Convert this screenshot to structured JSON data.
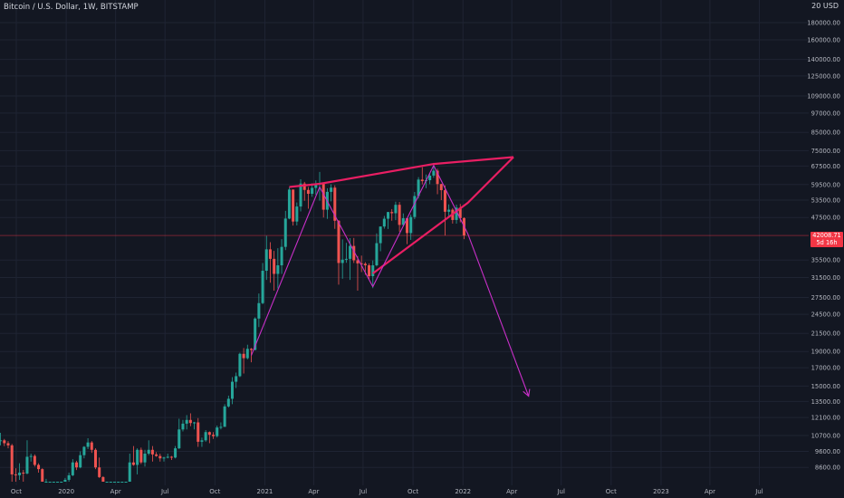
{
  "header": {
    "symbol": "Bitcoin / U.S. Dollar, 1W, BITSTAMP",
    "currency": "USD"
  },
  "price_tag": {
    "price": "42008.71",
    "countdown": "5d 16h",
    "color": "#f23645"
  },
  "colors": {
    "background": "#131722",
    "up": "#26a69a",
    "down": "#ef5350",
    "pattern": "#e91e63",
    "projection": "#c82fc8",
    "grid": "#1f2433",
    "text": "#b2b5be"
  },
  "chart_data": {
    "type": "candlestick",
    "title": "Bitcoin / U.S. Dollar, 1W, BITSTAMP",
    "y_scale": "log",
    "ylim": [
      7800,
      205000
    ],
    "y_ticks": [
      8600,
      9600,
      10700,
      12100,
      13500,
      15000,
      17000,
      19000,
      21500,
      24500,
      27500,
      31500,
      35500,
      47500,
      53500,
      59500,
      67500,
      75000,
      85000,
      97000,
      109000,
      125000,
      140000,
      160000,
      180000
    ],
    "y_top_label_partial": "20",
    "x_tick_labels": [
      "Oct",
      "2020",
      "Apr",
      "Jul",
      "Oct",
      "2021",
      "Apr",
      "Jul",
      "Oct",
      "2022",
      "Apr",
      "Jul",
      "Oct",
      "2023",
      "Apr",
      "Jul"
    ],
    "x_start": "2019-09-01",
    "x_end": "2023-09-30",
    "last_price": 42008.71,
    "candles": [
      {
        "t": "2019-09-02",
        "o": 10300,
        "h": 10900,
        "l": 10000,
        "c": 10350
      },
      {
        "t": "2019-09-09",
        "o": 10350,
        "h": 10450,
        "l": 9950,
        "c": 10150
      },
      {
        "t": "2019-09-16",
        "o": 10150,
        "h": 10300,
        "l": 9800,
        "c": 10000
      },
      {
        "t": "2019-09-23",
        "o": 10000,
        "h": 10100,
        "l": 7800,
        "c": 8200
      },
      {
        "t": "2019-09-30",
        "o": 8200,
        "h": 8550,
        "l": 7800,
        "c": 8150
      },
      {
        "t": "2019-10-07",
        "o": 8150,
        "h": 8850,
        "l": 7900,
        "c": 8300
      },
      {
        "t": "2019-10-14",
        "o": 8300,
        "h": 8450,
        "l": 7800,
        "c": 8250
      },
      {
        "t": "2019-10-21",
        "o": 8250,
        "h": 10350,
        "l": 8200,
        "c": 9250
      },
      {
        "t": "2019-10-28",
        "o": 9250,
        "h": 9450,
        "l": 8950,
        "c": 9300
      },
      {
        "t": "2019-11-04",
        "o": 9300,
        "h": 9400,
        "l": 8650,
        "c": 8750
      },
      {
        "t": "2019-11-11",
        "o": 8750,
        "h": 8850,
        "l": 8300,
        "c": 8500
      },
      {
        "t": "2019-11-18",
        "o": 8500,
        "h": 8550,
        "l": 7800,
        "c": 7800
      },
      {
        "t": "2019-11-25",
        "o": 7800,
        "h": 7950,
        "l": 7800,
        "c": 7800
      },
      {
        "t": "2019-12-02",
        "o": 7800,
        "h": 7800,
        "l": 7800,
        "c": 7800
      },
      {
        "t": "2019-12-09",
        "o": 7800,
        "h": 7800,
        "l": 7800,
        "c": 7800
      },
      {
        "t": "2019-12-16",
        "o": 7800,
        "h": 7800,
        "l": 7800,
        "c": 7800
      },
      {
        "t": "2019-12-23",
        "o": 7800,
        "h": 7800,
        "l": 7800,
        "c": 7800
      },
      {
        "t": "2019-12-30",
        "o": 7800,
        "h": 8000,
        "l": 7800,
        "c": 7900
      },
      {
        "t": "2020-01-06",
        "o": 7900,
        "h": 8300,
        "l": 7800,
        "c": 8150
      },
      {
        "t": "2020-01-13",
        "o": 8150,
        "h": 9100,
        "l": 8100,
        "c": 8900
      },
      {
        "t": "2020-01-20",
        "o": 8900,
        "h": 9000,
        "l": 8450,
        "c": 8600
      },
      {
        "t": "2020-01-27",
        "o": 8600,
        "h": 9600,
        "l": 8550,
        "c": 9350
      },
      {
        "t": "2020-02-03",
        "o": 9350,
        "h": 9950,
        "l": 9150,
        "c": 9900
      },
      {
        "t": "2020-02-10",
        "o": 9900,
        "h": 10500,
        "l": 9750,
        "c": 10200
      },
      {
        "t": "2020-02-17",
        "o": 10200,
        "h": 10300,
        "l": 9500,
        "c": 9700
      },
      {
        "t": "2020-02-24",
        "o": 9700,
        "h": 9800,
        "l": 8500,
        "c": 8600
      },
      {
        "t": "2020-03-02",
        "o": 8600,
        "h": 9200,
        "l": 8000,
        "c": 8050
      },
      {
        "t": "2020-03-09",
        "o": 8050,
        "h": 8100,
        "l": 7800,
        "c": 7800
      },
      {
        "t": "2020-03-16",
        "o": 7800,
        "h": 7800,
        "l": 7800,
        "c": 7800
      },
      {
        "t": "2020-03-23",
        "o": 7800,
        "h": 7800,
        "l": 7800,
        "c": 7800
      },
      {
        "t": "2020-03-30",
        "o": 7800,
        "h": 7800,
        "l": 7800,
        "c": 7800
      },
      {
        "t": "2020-04-06",
        "o": 7800,
        "h": 7800,
        "l": 7800,
        "c": 7800
      },
      {
        "t": "2020-04-13",
        "o": 7800,
        "h": 7800,
        "l": 7800,
        "c": 7800
      },
      {
        "t": "2020-04-20",
        "o": 7800,
        "h": 7800,
        "l": 7800,
        "c": 7800
      },
      {
        "t": "2020-04-27",
        "o": 7800,
        "h": 9450,
        "l": 7800,
        "c": 8900
      },
      {
        "t": "2020-05-04",
        "o": 8900,
        "h": 9950,
        "l": 8700,
        "c": 8750
      },
      {
        "t": "2020-05-11",
        "o": 8750,
        "h": 9800,
        "l": 8200,
        "c": 9700
      },
      {
        "t": "2020-05-18",
        "o": 9700,
        "h": 9850,
        "l": 8800,
        "c": 8900
      },
      {
        "t": "2020-05-25",
        "o": 8900,
        "h": 9700,
        "l": 8650,
        "c": 9450
      },
      {
        "t": "2020-06-01",
        "o": 9450,
        "h": 10350,
        "l": 9350,
        "c": 9700
      },
      {
        "t": "2020-06-08",
        "o": 9700,
        "h": 9950,
        "l": 8950,
        "c": 9400
      },
      {
        "t": "2020-06-15",
        "o": 9400,
        "h": 9550,
        "l": 9250,
        "c": 9300
      },
      {
        "t": "2020-06-22",
        "o": 9300,
        "h": 9450,
        "l": 8950,
        "c": 9150
      },
      {
        "t": "2020-06-29",
        "o": 9150,
        "h": 9250,
        "l": 8950,
        "c": 9200
      },
      {
        "t": "2020-07-06",
        "o": 9200,
        "h": 9450,
        "l": 9150,
        "c": 9250
      },
      {
        "t": "2020-07-13",
        "o": 9250,
        "h": 9300,
        "l": 9050,
        "c": 9200
      },
      {
        "t": "2020-07-20",
        "o": 9200,
        "h": 9950,
        "l": 9150,
        "c": 9800
      },
      {
        "t": "2020-07-27",
        "o": 9800,
        "h": 12000,
        "l": 9750,
        "c": 11150
      },
      {
        "t": "2020-08-03",
        "o": 11150,
        "h": 11900,
        "l": 11000,
        "c": 11600
      },
      {
        "t": "2020-08-10",
        "o": 11600,
        "h": 12300,
        "l": 11150,
        "c": 11900
      },
      {
        "t": "2020-08-17",
        "o": 11900,
        "h": 12450,
        "l": 11400,
        "c": 11650
      },
      {
        "t": "2020-08-24",
        "o": 11650,
        "h": 11750,
        "l": 11150,
        "c": 11700
      },
      {
        "t": "2020-08-31",
        "o": 11700,
        "h": 12050,
        "l": 9900,
        "c": 10250
      },
      {
        "t": "2020-09-07",
        "o": 10250,
        "h": 10550,
        "l": 9900,
        "c": 10350
      },
      {
        "t": "2020-09-14",
        "o": 10350,
        "h": 11100,
        "l": 10250,
        "c": 10950
      },
      {
        "t": "2020-09-21",
        "o": 10950,
        "h": 11000,
        "l": 10150,
        "c": 10750
      },
      {
        "t": "2020-09-28",
        "o": 10750,
        "h": 10950,
        "l": 10450,
        "c": 10650
      },
      {
        "t": "2020-10-05",
        "o": 10650,
        "h": 11450,
        "l": 10550,
        "c": 11300
      },
      {
        "t": "2020-10-12",
        "o": 11300,
        "h": 11700,
        "l": 11150,
        "c": 11350
      },
      {
        "t": "2020-10-19",
        "o": 11350,
        "h": 13250,
        "l": 11350,
        "c": 13050
      },
      {
        "t": "2020-10-26",
        "o": 13050,
        "h": 14050,
        "l": 12950,
        "c": 13750
      },
      {
        "t": "2020-11-02",
        "o": 13750,
        "h": 15950,
        "l": 13250,
        "c": 15450
      },
      {
        "t": "2020-11-09",
        "o": 15450,
        "h": 16450,
        "l": 14800,
        "c": 16050
      },
      {
        "t": "2020-11-16",
        "o": 16050,
        "h": 18850,
        "l": 15950,
        "c": 18700
      },
      {
        "t": "2020-11-23",
        "o": 18700,
        "h": 19450,
        "l": 16350,
        "c": 18150
      },
      {
        "t": "2020-11-30",
        "o": 18150,
        "h": 19900,
        "l": 18000,
        "c": 19350
      },
      {
        "t": "2020-12-07",
        "o": 19350,
        "h": 19450,
        "l": 17650,
        "c": 19200
      },
      {
        "t": "2020-12-14",
        "o": 19200,
        "h": 24000,
        "l": 19150,
        "c": 23800
      },
      {
        "t": "2020-12-21",
        "o": 23800,
        "h": 28250,
        "l": 22450,
        "c": 26450
      },
      {
        "t": "2020-12-28",
        "o": 26450,
        "h": 34800,
        "l": 26250,
        "c": 33000
      },
      {
        "t": "2021-01-04",
        "o": 33000,
        "h": 41900,
        "l": 31000,
        "c": 38200
      },
      {
        "t": "2021-01-11",
        "o": 38200,
        "h": 40100,
        "l": 30400,
        "c": 35800
      },
      {
        "t": "2021-01-18",
        "o": 35800,
        "h": 37800,
        "l": 28800,
        "c": 32300
      },
      {
        "t": "2021-01-25",
        "o": 32300,
        "h": 38500,
        "l": 29250,
        "c": 34250
      },
      {
        "t": "2021-02-01",
        "o": 34250,
        "h": 40950,
        "l": 32300,
        "c": 38850
      },
      {
        "t": "2021-02-08",
        "o": 38850,
        "h": 49700,
        "l": 38000,
        "c": 47150
      },
      {
        "t": "2021-02-15",
        "o": 47150,
        "h": 58350,
        "l": 46950,
        "c": 57500
      },
      {
        "t": "2021-02-22",
        "o": 57500,
        "h": 57500,
        "l": 44950,
        "c": 46200
      },
      {
        "t": "2021-03-01",
        "o": 46200,
        "h": 52650,
        "l": 45000,
        "c": 51200
      },
      {
        "t": "2021-03-08",
        "o": 51200,
        "h": 61700,
        "l": 49500,
        "c": 59900
      },
      {
        "t": "2021-03-15",
        "o": 59900,
        "h": 60600,
        "l": 53250,
        "c": 57350
      },
      {
        "t": "2021-03-22",
        "o": 57350,
        "h": 58500,
        "l": 50450,
        "c": 55850
      },
      {
        "t": "2021-03-29",
        "o": 55850,
        "h": 60000,
        "l": 54700,
        "c": 58150
      },
      {
        "t": "2021-04-05",
        "o": 58150,
        "h": 61200,
        "l": 55450,
        "c": 59850
      },
      {
        "t": "2021-04-12",
        "o": 59850,
        "h": 64850,
        "l": 53300,
        "c": 60050
      },
      {
        "t": "2021-04-19",
        "o": 60050,
        "h": 60050,
        "l": 47500,
        "c": 50100
      },
      {
        "t": "2021-04-26",
        "o": 50100,
        "h": 58000,
        "l": 47050,
        "c": 56600
      },
      {
        "t": "2021-05-03",
        "o": 56600,
        "h": 59600,
        "l": 53050,
        "c": 58250
      },
      {
        "t": "2021-05-10",
        "o": 58250,
        "h": 59200,
        "l": 43950,
        "c": 46450
      },
      {
        "t": "2021-05-17",
        "o": 46450,
        "h": 46650,
        "l": 30000,
        "c": 34800
      },
      {
        "t": "2021-05-24",
        "o": 34800,
        "h": 40900,
        "l": 31250,
        "c": 35600
      },
      {
        "t": "2021-05-31",
        "o": 35600,
        "h": 39950,
        "l": 34850,
        "c": 35800
      },
      {
        "t": "2021-06-07",
        "o": 35800,
        "h": 41250,
        "l": 31000,
        "c": 39100
      },
      {
        "t": "2021-06-14",
        "o": 39100,
        "h": 41300,
        "l": 34800,
        "c": 35450
      },
      {
        "t": "2021-06-21",
        "o": 35450,
        "h": 36500,
        "l": 28800,
        "c": 34700
      },
      {
        "t": "2021-06-28",
        "o": 34700,
        "h": 36600,
        "l": 32700,
        "c": 34600
      },
      {
        "t": "2021-07-05",
        "o": 34600,
        "h": 35000,
        "l": 32100,
        "c": 34250
      },
      {
        "t": "2021-07-12",
        "o": 34250,
        "h": 34700,
        "l": 31050,
        "c": 31800
      },
      {
        "t": "2021-07-19",
        "o": 31800,
        "h": 35400,
        "l": 29300,
        "c": 34250
      },
      {
        "t": "2021-07-26",
        "o": 34250,
        "h": 42600,
        "l": 34000,
        "c": 39850
      },
      {
        "t": "2021-08-02",
        "o": 39850,
        "h": 44700,
        "l": 37700,
        "c": 44650
      },
      {
        "t": "2021-08-09",
        "o": 44650,
        "h": 48000,
        "l": 44000,
        "c": 47100
      },
      {
        "t": "2021-08-16",
        "o": 47100,
        "h": 49350,
        "l": 43900,
        "c": 49300
      },
      {
        "t": "2021-08-23",
        "o": 49300,
        "h": 50300,
        "l": 46450,
        "c": 48900
      },
      {
        "t": "2021-08-30",
        "o": 48900,
        "h": 52900,
        "l": 46650,
        "c": 51800
      },
      {
        "t": "2021-09-06",
        "o": 51800,
        "h": 52800,
        "l": 43100,
        "c": 45150
      },
      {
        "t": "2021-09-13",
        "o": 45150,
        "h": 48850,
        "l": 44750,
        "c": 47250
      },
      {
        "t": "2021-09-20",
        "o": 47250,
        "h": 47350,
        "l": 39600,
        "c": 42700
      },
      {
        "t": "2021-09-27",
        "o": 42700,
        "h": 48450,
        "l": 40750,
        "c": 47650
      },
      {
        "t": "2021-10-04",
        "o": 47650,
        "h": 56550,
        "l": 46950,
        "c": 55000
      },
      {
        "t": "2021-10-11",
        "o": 55000,
        "h": 62600,
        "l": 54050,
        "c": 61550
      },
      {
        "t": "2021-10-18",
        "o": 61550,
        "h": 67000,
        "l": 59550,
        "c": 60900
      },
      {
        "t": "2021-10-25",
        "o": 60900,
        "h": 63700,
        "l": 58000,
        "c": 61300
      },
      {
        "t": "2021-11-01",
        "o": 61300,
        "h": 64300,
        "l": 59650,
        "c": 63250
      },
      {
        "t": "2021-11-08",
        "o": 63250,
        "h": 69000,
        "l": 62300,
        "c": 65400
      },
      {
        "t": "2021-11-15",
        "o": 65400,
        "h": 66300,
        "l": 55700,
        "c": 59700
      },
      {
        "t": "2021-11-22",
        "o": 59700,
        "h": 59850,
        "l": 53500,
        "c": 57250
      },
      {
        "t": "2021-11-29",
        "o": 57250,
        "h": 59150,
        "l": 42000,
        "c": 49400
      },
      {
        "t": "2021-12-06",
        "o": 49400,
        "h": 51950,
        "l": 47300,
        "c": 50100
      },
      {
        "t": "2021-12-13",
        "o": 50100,
        "h": 50650,
        "l": 45550,
        "c": 46700
      },
      {
        "t": "2021-12-20",
        "o": 46700,
        "h": 51850,
        "l": 45550,
        "c": 50800
      },
      {
        "t": "2021-12-27",
        "o": 50800,
        "h": 52100,
        "l": 45950,
        "c": 47300
      },
      {
        "t": "2022-01-03",
        "o": 47300,
        "h": 47550,
        "l": 40950,
        "c": 42008.71
      }
    ],
    "annotations": [
      {
        "type": "trendline",
        "name": "wedge-upper-line",
        "color": "#e91e63",
        "points": [
          [
            "2021-02-15",
            58500
          ],
          [
            "2021-04-12",
            59800
          ],
          [
            "2021-11-08",
            68500
          ],
          [
            "2022-04-04",
            71800
          ]
        ]
      },
      {
        "type": "trendline",
        "name": "wedge-lower-line",
        "color": "#e91e63",
        "points": [
          [
            "2021-07-19",
            32400
          ],
          [
            "2022-01-10",
            52500
          ],
          [
            "2022-04-04",
            71800
          ]
        ]
      },
      {
        "type": "zigzag",
        "name": "projection-path",
        "color": "#c82fc8",
        "points": [
          [
            "2020-12-07",
            18500
          ],
          [
            "2021-04-12",
            58500
          ],
          [
            "2021-07-19",
            29600
          ],
          [
            "2021-11-08",
            67800
          ],
          [
            "2022-01-10",
            42500
          ],
          [
            "2022-05-02",
            14000
          ]
        ],
        "arrow_end": true
      }
    ]
  }
}
